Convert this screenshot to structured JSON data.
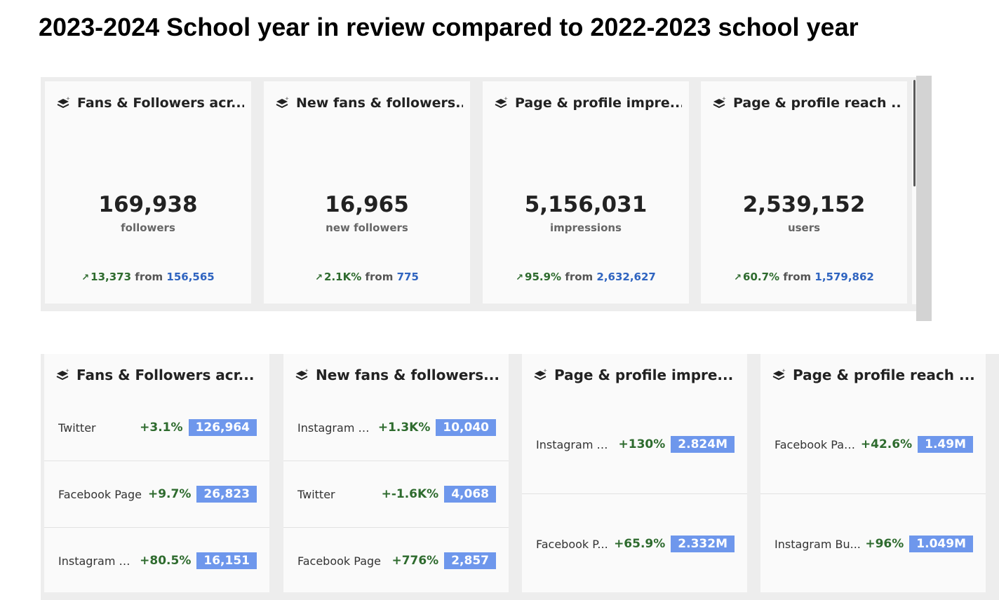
{
  "page_title": "2023-2024 School year in review compared to 2022-2023 school year",
  "icons": {
    "card": "layers-sparkle-icon",
    "trend": "arrow-up-right-icon"
  },
  "colors": {
    "positive": "#2e6b2e",
    "previous": "#2f64c0",
    "badge": "#6e97ec"
  },
  "summary_cards": [
    {
      "title": "Fans & Followers acr...",
      "value": "169,938",
      "unit": "followers",
      "change": "13,373",
      "from": "from",
      "previous": "156,565"
    },
    {
      "title": "New fans & followers...",
      "value": "16,965",
      "unit": "new followers",
      "change": "2.1K%",
      "from": "from",
      "previous": "775"
    },
    {
      "title": "Page & profile impre...",
      "value": "5,156,031",
      "unit": "impressions",
      "change": "95.9%",
      "from": "from",
      "previous": "2,632,627"
    },
    {
      "title": "Page & profile reach ...",
      "value": "2,539,152",
      "unit": "users",
      "change": "60.7%",
      "from": "from",
      "previous": "1,579,862"
    }
  ],
  "breakdown_cards": [
    {
      "title": "Fans & Followers acr...",
      "rows": [
        {
          "label": "Twitter",
          "pct": "+3.1%",
          "value": "126,964"
        },
        {
          "label": "Facebook Page",
          "pct": "+9.7%",
          "value": "26,823"
        },
        {
          "label": "Instagram B...",
          "pct": "+80.5%",
          "value": "16,151"
        }
      ]
    },
    {
      "title": "New fans & followers...",
      "rows": [
        {
          "label": "Instagram B...",
          "pct": "+1.3K%",
          "value": "10,040"
        },
        {
          "label": "Twitter",
          "pct": "+-1.6K%",
          "value": "4,068"
        },
        {
          "label": "Facebook Page",
          "pct": "+776%",
          "value": "2,857"
        }
      ]
    },
    {
      "title": "Page & profile impre...",
      "rows": [
        {
          "label": "Instagram B...",
          "pct": "+130%",
          "value": "2.824M"
        },
        {
          "label": "Facebook P...",
          "pct": "+65.9%",
          "value": "2.332M"
        }
      ]
    },
    {
      "title": "Page & profile reach ...",
      "rows": [
        {
          "label": "Facebook Page",
          "pct": "+42.6%",
          "value": "1.49M"
        },
        {
          "label": "Instagram Bu...",
          "pct": "+96%",
          "value": "1.049M"
        }
      ]
    }
  ]
}
